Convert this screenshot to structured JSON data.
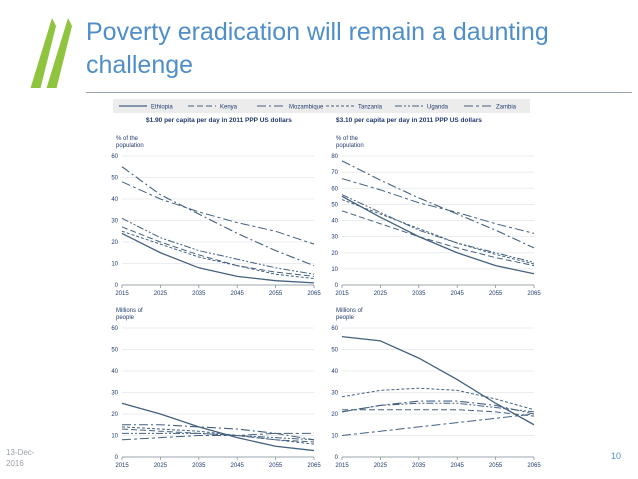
{
  "slide": {
    "title": "Poverty eradication will remain a daunting challenge",
    "date": "13-Dec-2016",
    "page": "10",
    "accent": "#4f8ec8",
    "logo_color": "#8fc43f"
  },
  "legend": [
    "Ethiopia",
    "Kenya",
    "Mozambique",
    "Tanzania",
    "Uganda",
    "Zambia"
  ],
  "panels": {
    "left_title": "$1.90 per capita per day in 2011 PPP US dollars",
    "right_title": "$3.10 per capita per day in 2011 PPP US dollars"
  },
  "chart_data": [
    {
      "type": "line",
      "ylabel": "% of the population",
      "x": [
        2015,
        2025,
        2035,
        2045,
        2055,
        2065
      ],
      "ylim": [
        0,
        60
      ],
      "yticks": [
        0,
        10,
        20,
        30,
        40,
        50,
        60
      ],
      "series": [
        {
          "name": "Ethiopia",
          "values": [
            24,
            15,
            8,
            4,
            2,
            1
          ]
        },
        {
          "name": "Kenya",
          "values": [
            27,
            20,
            14,
            9,
            6,
            4
          ]
        },
        {
          "name": "Mozambique",
          "values": [
            55,
            42,
            33,
            24,
            16,
            9
          ]
        },
        {
          "name": "Tanzania",
          "values": [
            25,
            19,
            13,
            9,
            5,
            3
          ]
        },
        {
          "name": "Uganda",
          "values": [
            31,
            22,
            16,
            12,
            8,
            5
          ]
        },
        {
          "name": "Zambia",
          "values": [
            48,
            40,
            34,
            29,
            25,
            19
          ]
        }
      ]
    },
    {
      "type": "line",
      "ylabel": "% of the population",
      "x": [
        2015,
        2025,
        2035,
        2045,
        2055,
        2065
      ],
      "ylim": [
        0,
        80
      ],
      "yticks": [
        0,
        10,
        20,
        30,
        40,
        50,
        60,
        70,
        80
      ],
      "series": [
        {
          "name": "Ethiopia",
          "values": [
            55,
            42,
            30,
            20,
            12,
            7
          ]
        },
        {
          "name": "Kenya",
          "values": [
            46,
            38,
            30,
            23,
            17,
            12
          ]
        },
        {
          "name": "Mozambique",
          "values": [
            77,
            65,
            54,
            44,
            34,
            23
          ]
        },
        {
          "name": "Tanzania",
          "values": [
            53,
            44,
            35,
            26,
            19,
            13
          ]
        },
        {
          "name": "Uganda",
          "values": [
            56,
            45,
            34,
            26,
            20,
            14
          ]
        },
        {
          "name": "Zambia",
          "values": [
            66,
            59,
            51,
            45,
            38,
            32
          ]
        }
      ]
    },
    {
      "type": "line",
      "ylabel": "Millions of people",
      "x": [
        2015,
        2025,
        2035,
        2045,
        2055,
        2065
      ],
      "ylim": [
        0,
        60
      ],
      "yticks": [
        0,
        10,
        20,
        30,
        40,
        50,
        60
      ],
      "series": [
        {
          "name": "Ethiopia",
          "values": [
            25,
            20,
            14,
            9,
            5,
            3
          ]
        },
        {
          "name": "Kenya",
          "values": [
            13,
            12,
            11,
            10,
            8,
            7
          ]
        },
        {
          "name": "Mozambique",
          "values": [
            15,
            15,
            14,
            13,
            11,
            8
          ]
        },
        {
          "name": "Tanzania",
          "values": [
            14,
            13,
            12,
            10,
            8,
            6
          ]
        },
        {
          "name": "Uganda",
          "values": [
            11,
            11,
            11,
            10,
            9,
            8
          ]
        },
        {
          "name": "Zambia",
          "values": [
            8,
            9,
            10,
            10,
            11,
            11
          ]
        }
      ]
    },
    {
      "type": "line",
      "ylabel": "Millions of people",
      "x": [
        2015,
        2025,
        2035,
        2045,
        2055,
        2065
      ],
      "ylim": [
        0,
        60
      ],
      "yticks": [
        0,
        10,
        20,
        30,
        40,
        50,
        60
      ],
      "series": [
        {
          "name": "Ethiopia",
          "values": [
            56,
            54,
            46,
            36,
            25,
            15
          ]
        },
        {
          "name": "Kenya",
          "values": [
            22,
            22,
            22,
            22,
            21,
            19
          ]
        },
        {
          "name": "Mozambique",
          "values": [
            21,
            24,
            26,
            26,
            24,
            20
          ]
        },
        {
          "name": "Tanzania",
          "values": [
            28,
            31,
            32,
            31,
            27,
            22
          ]
        },
        {
          "name": "Uganda",
          "values": [
            21,
            24,
            25,
            25,
            23,
            21
          ]
        },
        {
          "name": "Zambia",
          "values": [
            10,
            12,
            14,
            16,
            18,
            20
          ]
        }
      ]
    }
  ]
}
